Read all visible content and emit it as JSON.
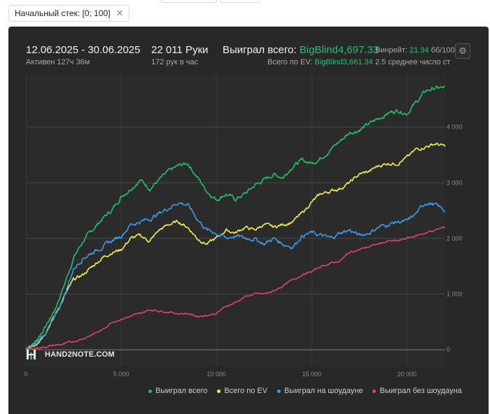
{
  "filter": {
    "label": "Начальный стек: [0; 100]"
  },
  "header": {
    "date_range": "12.06.2025 - 30.06.2025",
    "active": "Активен 127ч 36м",
    "hands": "22 011 Руки",
    "hands_rate": "172 рук в час",
    "won_label": "Выиграл всего:",
    "won_value": "BigBlind4,697.33",
    "ev_label": "Всего по EV:",
    "ev_value": "BigBlind3,661.34",
    "winrate_label": "Винрейт:",
    "winrate_value": "21.34",
    "winrate_unit": "бб/100",
    "avg_stack": "2.5 среднее число ст"
  },
  "watermark": "HAND2NOTE.COM",
  "colors": {
    "won": "#22c06e",
    "ev": "#f2f24a",
    "showdown": "#3d9be8",
    "non_showdown": "#e0416d"
  },
  "chart_data": {
    "type": "line",
    "xlim": [
      0,
      22011
    ],
    "ylim": [
      -300,
      4950
    ],
    "x_ticks": [
      0,
      5000,
      10000,
      15000,
      20000
    ],
    "x_tick_labels": [
      "0",
      "5 000",
      "10 000",
      "15 000",
      "20 000"
    ],
    "y_ticks": [
      0,
      1000,
      2000,
      3000,
      4000
    ],
    "y_tick_labels": [
      "0",
      "1 000",
      "2 000",
      "3 000",
      "4 000"
    ],
    "grid": true,
    "legend_position": "bottom",
    "x": [
      0,
      500,
      1000,
      1500,
      2000,
      2500,
      3000,
      3500,
      4000,
      4500,
      5000,
      5500,
      6000,
      6500,
      7000,
      7500,
      8000,
      8500,
      9000,
      9500,
      10000,
      10500,
      11000,
      11500,
      12000,
      12500,
      13000,
      13500,
      14000,
      14500,
      15000,
      15500,
      16000,
      16500,
      17000,
      17500,
      18000,
      18500,
      19000,
      19500,
      20000,
      20500,
      21000,
      21500,
      22000
    ],
    "series": [
      {
        "name": "Выиграл всего",
        "values": [
          0,
          150,
          400,
          700,
          1150,
          1650,
          1950,
          2150,
          2350,
          2500,
          2750,
          2900,
          3050,
          2900,
          3050,
          3200,
          3300,
          3350,
          3100,
          2850,
          2700,
          2800,
          2700,
          2800,
          2950,
          3050,
          3150,
          3100,
          3300,
          3400,
          3350,
          3450,
          3600,
          3750,
          3900,
          3950,
          4050,
          4150,
          4250,
          4300,
          4250,
          4450,
          4650,
          4700,
          4700
        ]
      },
      {
        "name": "Всего по EV",
        "values": [
          0,
          100,
          300,
          600,
          950,
          1250,
          1350,
          1500,
          1650,
          1750,
          1800,
          2000,
          2050,
          1950,
          2150,
          2250,
          2300,
          2200,
          2000,
          1900,
          2000,
          2150,
          2100,
          2200,
          2150,
          2250,
          2200,
          2250,
          2300,
          2450,
          2650,
          2800,
          2850,
          2900,
          3000,
          3150,
          3200,
          3300,
          3350,
          3350,
          3450,
          3600,
          3650,
          3700,
          3650
        ]
      },
      {
        "name": "Выиграл на шоудауне",
        "values": [
          0,
          100,
          300,
          550,
          950,
          1450,
          1650,
          1750,
          1850,
          1950,
          2050,
          2250,
          2300,
          2350,
          2450,
          2550,
          2650,
          2600,
          2350,
          2150,
          2100,
          2000,
          2050,
          2000,
          2000,
          1900,
          2000,
          1900,
          1850,
          2050,
          2100,
          2050,
          2000,
          2100,
          2150,
          2050,
          2100,
          2200,
          2250,
          2300,
          2300,
          2450,
          2650,
          2600,
          2500
        ]
      },
      {
        "name": "Выиграл без шоудауна",
        "values": [
          0,
          30,
          50,
          80,
          100,
          150,
          200,
          280,
          350,
          500,
          550,
          600,
          650,
          720,
          700,
          680,
          650,
          650,
          600,
          620,
          650,
          780,
          850,
          950,
          1000,
          1000,
          1050,
          1150,
          1250,
          1350,
          1400,
          1500,
          1550,
          1600,
          1750,
          1800,
          1850,
          1900,
          1950,
          1950,
          2000,
          2050,
          2100,
          2150,
          2200
        ]
      }
    ]
  },
  "legend": [
    {
      "label": "Выиграл всего",
      "color": "#22c06e"
    },
    {
      "label": "Всего по EV",
      "color": "#f2f24a"
    },
    {
      "label": "Выиграл на шоудауне",
      "color": "#3d9be8"
    },
    {
      "label": "Выиграл без шоудауна",
      "color": "#e0416d"
    }
  ]
}
